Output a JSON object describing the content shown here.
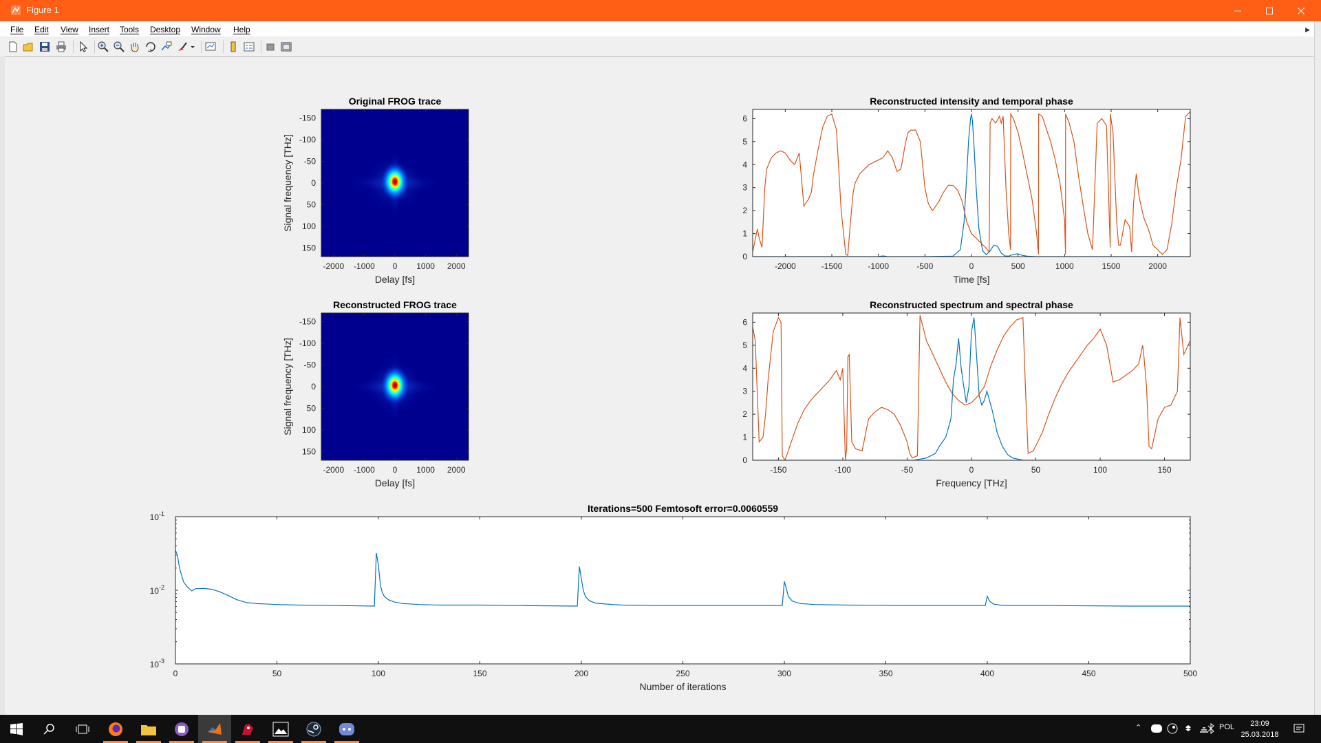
{
  "window": {
    "title": "Figure 1"
  },
  "menu": [
    "File",
    "Edit",
    "View",
    "Insert",
    "Tools",
    "Desktop",
    "Window",
    "Help"
  ],
  "toolbar_icons": [
    "new-figure-icon",
    "open-file-icon",
    "save-icon",
    "print-icon",
    "edit-plot-arrow-icon",
    "zoom-in-icon",
    "zoom-out-icon",
    "pan-hand-icon",
    "rotate-3d-icon",
    "data-cursor-icon",
    "brush-icon",
    "brush-dropdown-icon",
    "link-plot-icon",
    "insert-colorbar-icon",
    "insert-legend-icon",
    "hide-plot-tools-icon",
    "show-plot-tools-icon"
  ],
  "colors": {
    "titlebar": "#ff5e14",
    "series_blue": "#0072bd",
    "series_orange": "#d95319"
  },
  "chart_data": [
    {
      "id": "original-frog",
      "type": "heatmap",
      "title": "Original FROG trace",
      "xlabel": "Delay [fs]",
      "ylabel": "Signal frequency [THz]",
      "xlim": [
        -2400,
        2400
      ],
      "ylim": [
        -170,
        170
      ],
      "y_reversed": true,
      "xticks": [
        -2000,
        -1000,
        0,
        1000,
        2000
      ],
      "yticks": [
        -150,
        -100,
        -50,
        0,
        50,
        100,
        150
      ],
      "colormap": "jet",
      "peak": {
        "delay": 0,
        "frequency": 0
      }
    },
    {
      "id": "reconstructed-frog",
      "type": "heatmap",
      "title": "Reconstructed FROG trace",
      "xlabel": "Delay [fs]",
      "ylabel": "Signal frequency [THz]",
      "xlim": [
        -2400,
        2400
      ],
      "ylim": [
        -170,
        170
      ],
      "y_reversed": true,
      "xticks": [
        -2000,
        -1000,
        0,
        1000,
        2000
      ],
      "yticks": [
        -150,
        -100,
        -50,
        0,
        50,
        100,
        150
      ],
      "colormap": "jet",
      "peak": {
        "delay": 0,
        "frequency": 0
      }
    },
    {
      "id": "temporal",
      "type": "line",
      "title": "Reconstructed intensity and temporal phase",
      "xlabel": "Time [fs]",
      "ylabel": "",
      "xlim": [
        -2350,
        2350
      ],
      "ylim": [
        0,
        6.4
      ],
      "xticks": [
        -2000,
        -1500,
        -1000,
        -500,
        0,
        500,
        1000,
        1500,
        2000
      ],
      "yticks": [
        0,
        1,
        2,
        3,
        4,
        5,
        6
      ],
      "series": [
        {
          "color": "#0072bd",
          "x": [
            -2350,
            -1000,
            -950,
            -900,
            -500,
            -200,
            -120,
            -80,
            -50,
            -30,
            -10,
            0,
            10,
            30,
            50,
            80,
            120,
            160,
            200,
            240,
            280,
            320,
            360,
            400,
            450,
            500,
            550,
            600,
            700,
            2350
          ],
          "y": [
            0,
            0,
            0.03,
            0,
            0,
            0.02,
            0.3,
            1.5,
            3.6,
            5.1,
            6.0,
            6.2,
            5.9,
            4.6,
            3.0,
            1.2,
            0.25,
            0.08,
            0.25,
            0.5,
            0.45,
            0.15,
            0.03,
            0.02,
            0.1,
            0.12,
            0.05,
            0.02,
            0,
            0
          ]
        },
        {
          "color": "#d95319",
          "x": [
            -2350,
            -2330,
            -2300,
            -2280,
            -2250,
            -2220,
            -2200,
            -2150,
            -2100,
            -2050,
            -2000,
            -1950,
            -1900,
            -1850,
            -1800,
            -1750,
            -1720,
            -1700,
            -1650,
            -1600,
            -1550,
            -1500,
            -1450,
            -1400,
            -1350,
            -1330,
            -1329,
            -1300,
            -1270,
            -1250,
            -1200,
            -1150,
            -1100,
            -1050,
            -1000,
            -950,
            -900,
            -850,
            -800,
            -760,
            -740,
            -720,
            -700,
            -680,
            -650,
            -600,
            -550,
            -500,
            -470,
            -450,
            -420,
            -400,
            -350,
            -300,
            -250,
            -200,
            -150,
            -100,
            -50,
            0,
            50,
            100,
            150,
            190,
            200,
            220,
            260,
            300,
            320,
            340,
            370,
            400,
            420,
            421,
            450,
            500,
            550,
            600,
            650,
            700,
            720,
            721,
            760,
            800,
            850,
            900,
            950,
            1000,
            1010,
            1011,
            1050,
            1100,
            1150,
            1200,
            1250,
            1300,
            1350,
            1400,
            1450,
            1490,
            1491,
            1520,
            1540,
            1560,
            1580,
            1600,
            1650,
            1700,
            1720,
            1740,
            1770,
            1800,
            1850,
            1900,
            1950,
            2000,
            2050,
            2100,
            2150,
            2200,
            2250,
            2300,
            2350
          ],
          "y": [
            0.2,
            0.6,
            1.2,
            0.8,
            0.4,
            3.0,
            3.8,
            4.3,
            4.5,
            4.6,
            4.5,
            4.2,
            4.0,
            4.5,
            2.2,
            2.5,
            2.8,
            3.5,
            4.6,
            5.6,
            6.1,
            6.2,
            5.5,
            2.0,
            0.1,
            0.05,
            0.05,
            1.5,
            2.8,
            3.2,
            3.6,
            3.8,
            4.0,
            4.1,
            4.2,
            4.3,
            4.6,
            4.3,
            3.7,
            3.8,
            4.2,
            4.7,
            5.1,
            5.4,
            5.5,
            5.5,
            5.0,
            3.0,
            2.4,
            2.2,
            2.0,
            2.1,
            2.4,
            2.8,
            3.1,
            3.1,
            2.9,
            2.4,
            1.5,
            1.0,
            0.8,
            0.6,
            0.4,
            0.2,
            5.8,
            6.0,
            5.8,
            6.1,
            5.8,
            6.1,
            3.0,
            1.0,
            0.3,
            6.2,
            6.0,
            5.4,
            4.5,
            3.5,
            2.5,
            1.0,
            0.1,
            6.2,
            6.1,
            5.6,
            5.0,
            4.2,
            3.2,
            1.6,
            0.1,
            6.2,
            5.8,
            5.0,
            3.5,
            2.2,
            1.0,
            0.3,
            5.8,
            6.0,
            5.7,
            0.4,
            6.2,
            5.4,
            3.4,
            1.5,
            0.5,
            0.5,
            1.6,
            1.3,
            0.2,
            2.3,
            3.6,
            2.6,
            1.7,
            1.2,
            0.5,
            0.3,
            0.1,
            0.3,
            1.4,
            3.0,
            4.2,
            6.1,
            6.3
          ]
        }
      ]
    },
    {
      "id": "spectral",
      "type": "line",
      "title": "Reconstructed spectrum and spectral phase",
      "xlabel": "Frequency [THz]",
      "ylabel": "",
      "xlim": [
        -170,
        170
      ],
      "ylim": [
        0,
        6.4
      ],
      "xticks": [
        -150,
        -100,
        -50,
        0,
        50,
        100,
        150
      ],
      "yticks": [
        0,
        1,
        2,
        3,
        4,
        5,
        6
      ],
      "series": [
        {
          "color": "#0072bd",
          "x": [
            -170,
            -45,
            -35,
            -28,
            -25,
            -20,
            -16,
            -14,
            -12,
            -10,
            -8,
            -6,
            -4,
            -2,
            0,
            2,
            4,
            6,
            8,
            10,
            12,
            14,
            16,
            20,
            24,
            28,
            32,
            40,
            170
          ],
          "y": [
            0,
            0,
            0.1,
            0.3,
            0.6,
            1.0,
            1.8,
            3.5,
            4.2,
            5.3,
            4.0,
            3.2,
            2.5,
            3.2,
            5.6,
            6.2,
            4.5,
            2.8,
            2.4,
            2.6,
            3.0,
            2.6,
            2.2,
            1.2,
            0.6,
            0.25,
            0.1,
            0,
            0
          ]
        },
        {
          "color": "#d95319",
          "x": [
            -170,
            -168,
            -165,
            -162,
            -160,
            -158,
            -154,
            -150,
            -148,
            -147,
            -146,
            -145,
            -143,
            -140,
            -135,
            -130,
            -125,
            -120,
            -115,
            -110,
            -105,
            -102,
            -100,
            -98,
            -97,
            -96,
            -95,
            -93,
            -90,
            -85,
            -80,
            -75,
            -70,
            -65,
            -60,
            -55,
            -50,
            -48,
            -46,
            -42,
            -40,
            -35,
            -30,
            -25,
            -20,
            -15,
            -10,
            -5,
            0,
            5,
            10,
            15,
            20,
            25,
            30,
            35,
            40,
            42,
            44,
            48,
            55,
            60,
            65,
            70,
            75,
            80,
            85,
            90,
            95,
            100,
            105,
            110,
            115,
            120,
            125,
            130,
            133,
            134,
            136,
            138,
            140,
            145,
            150,
            155,
            160,
            162,
            165,
            170
          ],
          "y": [
            5.8,
            5.2,
            0.8,
            1.0,
            2.0,
            3.5,
            5.6,
            6.2,
            6.0,
            0.2,
            0.1,
            0.0,
            0.3,
            0.8,
            1.6,
            2.2,
            2.6,
            2.9,
            3.2,
            3.5,
            3.9,
            3.5,
            4.0,
            0.0,
            0.5,
            4.5,
            4.6,
            0.8,
            0.5,
            0.4,
            1.8,
            2.1,
            2.3,
            2.2,
            2.0,
            1.5,
            0.8,
            0.3,
            0.1,
            0.2,
            6.3,
            5.2,
            4.6,
            4.0,
            3.4,
            2.9,
            2.6,
            2.4,
            2.5,
            2.8,
            3.2,
            4.1,
            4.8,
            5.4,
            5.8,
            6.1,
            6.2,
            3.0,
            0.3,
            0.4,
            1.2,
            2.0,
            2.7,
            3.3,
            3.8,
            4.2,
            4.6,
            5.0,
            5.3,
            5.7,
            5.0,
            3.4,
            3.5,
            3.7,
            3.9,
            4.2,
            5.0,
            4.5,
            3.2,
            0.6,
            0.5,
            1.8,
            2.3,
            2.4,
            3.0,
            6.2,
            4.6,
            5.2
          ]
        }
      ]
    },
    {
      "id": "error",
      "type": "line",
      "title": "Iterations=500 Femtosoft error=0.0060559",
      "xlabel": "Number of iterations",
      "ylabel": "",
      "xlim": [
        0,
        500
      ],
      "yscale": "log",
      "ylim": [
        0.001,
        0.1
      ],
      "xticks": [
        0,
        50,
        100,
        150,
        200,
        250,
        300,
        350,
        400,
        450,
        500
      ],
      "yticks": [
        {
          "value": 0.1,
          "base": "10",
          "exp": "-1"
        },
        {
          "value": 0.01,
          "base": "10",
          "exp": "-2"
        },
        {
          "value": 0.001,
          "base": "10",
          "exp": "-3"
        }
      ],
      "series": [
        {
          "color": "#0072bd",
          "x": [
            0,
            1,
            2,
            4,
            6,
            8,
            10,
            14,
            18,
            22,
            26,
            30,
            35,
            40,
            50,
            60,
            80,
            98,
            99,
            100,
            101,
            102,
            103,
            105,
            108,
            112,
            120,
            130,
            150,
            170,
            198,
            199,
            200,
            201,
            202,
            204,
            207,
            212,
            220,
            240,
            270,
            299,
            300,
            301,
            302,
            304,
            308,
            315,
            330,
            360,
            399,
            400,
            401,
            403,
            406,
            410,
            430,
            470,
            500
          ],
          "y": [
            0.035,
            0.03,
            0.02,
            0.013,
            0.011,
            0.0098,
            0.0105,
            0.0106,
            0.0103,
            0.0095,
            0.0085,
            0.0075,
            0.0068,
            0.0066,
            0.0064,
            0.0063,
            0.0062,
            0.0061,
            0.032,
            0.022,
            0.0115,
            0.0092,
            0.0082,
            0.0074,
            0.0069,
            0.0066,
            0.0064,
            0.0063,
            0.0063,
            0.0062,
            0.0061,
            0.021,
            0.0142,
            0.0098,
            0.0082,
            0.0072,
            0.0067,
            0.0065,
            0.0063,
            0.0062,
            0.0062,
            0.0062,
            0.0132,
            0.0105,
            0.0082,
            0.0071,
            0.0066,
            0.0064,
            0.0063,
            0.0062,
            0.0062,
            0.0083,
            0.0072,
            0.0065,
            0.0063,
            0.0062,
            0.0062,
            0.0061,
            0.0061
          ]
        }
      ]
    }
  ],
  "taskbar": {
    "apps": [
      "start-icon",
      "search-icon",
      "task-view-icon",
      "firefox-icon",
      "file-explorer-icon",
      "app-icon",
      "matlab-icon",
      "steam-red-icon",
      "photos-icon",
      "steam-icon",
      "discord-icon"
    ],
    "language": "POL",
    "time": "23:09",
    "date": "25.03.2018"
  }
}
